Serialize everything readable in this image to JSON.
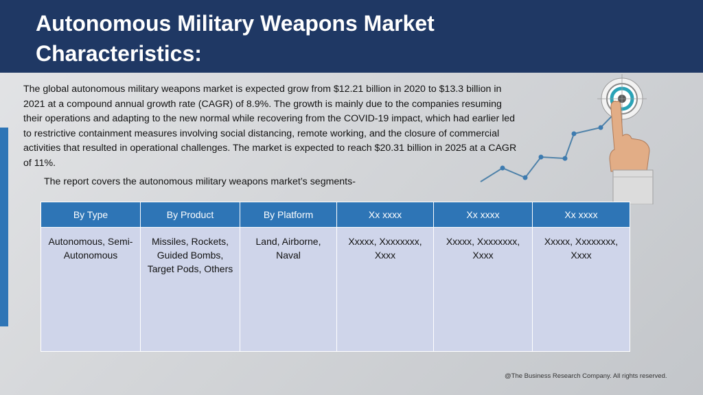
{
  "slide": {
    "title": "Autonomous Military Weapons Market Characteristics:",
    "paragraph": "The global autonomous military weapons market is expected grow from $12.21 billion in 2020 to $13.3 billion in 2021 at a compound annual growth rate (CAGR) of 8.9%. The growth is mainly due to the companies resuming their operations and adapting to the new normal while recovering from the COVID-19 impact, which had earlier led to restrictive containment measures involving social distancing, remote working, and the closure of commercial activities that resulted in operational challenges. The market is expected to reach $20.31 billion in 2025 at a CAGR of 11%.",
    "segments_intro": "The report covers the autonomous military weapons market’s segments-",
    "footer": "@The Business Research Company. All rights reserved."
  },
  "table": {
    "headers": [
      "By Type",
      "By Product",
      "By Platform",
      "Xx xxxx",
      "Xx xxxx",
      "Xx xxxx"
    ],
    "cells": [
      "Autonomous, Semi-Autonomous",
      "Missiles, Rockets, Guided Bombs, Target Pods, Others",
      "Land, Airborne, Naval",
      "Xxxxx, Xxxxxxxx, Xxxx",
      "Xxxxx, Xxxxxxxx, Xxxx",
      "Xxxxx, Xxxxxxxx, Xxxx"
    ]
  },
  "theme": {
    "header_bg": "#1f3864",
    "table_header_bg": "#2e75b6",
    "table_cell_bg": "#cfd5ea",
    "accent": "#2e75b6"
  },
  "icons": [
    "growth-line-icon",
    "target-icon",
    "pointing-hand-icon"
  ]
}
